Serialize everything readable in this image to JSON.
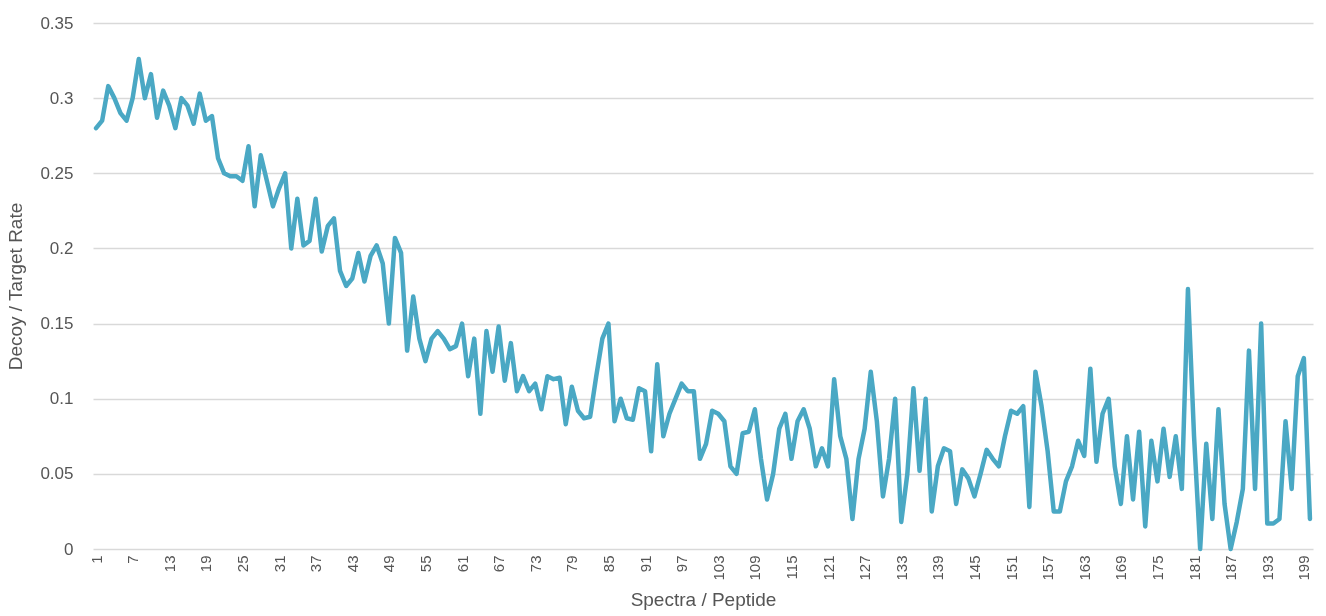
{
  "chart_data": {
    "type": "line",
    "xlabel": "Spectra / Peptide",
    "ylabel": "Decoy / Target Rate",
    "categories": [
      "1",
      null,
      null,
      null,
      null,
      null,
      "7",
      null,
      null,
      null,
      null,
      null,
      "13",
      null,
      null,
      null,
      null,
      null,
      "19",
      null,
      null,
      null,
      null,
      null,
      "25",
      null,
      null,
      null,
      null,
      null,
      "31",
      null,
      null,
      null,
      null,
      null,
      "37",
      null,
      null,
      null,
      null,
      null,
      "43",
      null,
      null,
      null,
      null,
      null,
      "49",
      null,
      null,
      null,
      null,
      null,
      "55",
      null,
      null,
      null,
      null,
      null,
      "61",
      null,
      null,
      null,
      null,
      null,
      "67",
      null,
      null,
      null,
      null,
      null,
      "73",
      null,
      null,
      null,
      null,
      null,
      "79",
      null,
      null,
      null,
      null,
      null,
      "85",
      null,
      null,
      null,
      null,
      null,
      "91",
      null,
      null,
      null,
      null,
      null,
      "97",
      null,
      null,
      null,
      null,
      null,
      "103",
      null,
      null,
      null,
      null,
      null,
      "109",
      null,
      null,
      null,
      null,
      null,
      "115",
      null,
      null,
      null,
      null,
      null,
      "121",
      null,
      null,
      null,
      null,
      null,
      "127",
      null,
      null,
      null,
      null,
      null,
      "133",
      null,
      null,
      null,
      null,
      null,
      "139",
      null,
      null,
      null,
      null,
      null,
      "145",
      null,
      null,
      null,
      null,
      null,
      "151",
      null,
      null,
      null,
      null,
      null,
      "157",
      null,
      null,
      null,
      null,
      null,
      "163",
      null,
      null,
      null,
      null,
      null,
      "169",
      null,
      null,
      null,
      null,
      null,
      "175",
      null,
      null,
      null,
      null,
      null,
      "181",
      null,
      null,
      null,
      null,
      null,
      "187",
      null,
      null,
      null,
      null,
      null,
      "193",
      null,
      null,
      null,
      null,
      null,
      "199",
      null
    ],
    "series": [
      {
        "color": "#4aa8c4",
        "values": [
          0.28,
          0.285,
          0.308,
          0.3,
          0.29,
          0.285,
          0.3,
          0.326,
          0.3,
          0.316,
          0.287,
          0.305,
          0.295,
          0.28,
          0.3,
          0.295,
          0.283,
          0.303,
          0.285,
          0.288,
          0.26,
          0.25,
          0.248,
          0.248,
          0.245,
          0.268,
          0.228,
          0.262,
          0.245,
          0.228,
          0.24,
          0.25,
          0.2,
          0.233,
          0.202,
          0.205,
          0.233,
          0.198,
          0.215,
          0.22,
          0.185,
          0.175,
          0.18,
          0.197,
          0.178,
          0.195,
          0.202,
          0.19,
          0.15,
          0.207,
          0.197,
          0.132,
          0.168,
          0.14,
          0.125,
          0.14,
          0.145,
          0.14,
          0.133,
          0.135,
          0.15,
          0.115,
          0.14,
          0.09,
          0.145,
          0.118,
          0.148,
          0.112,
          0.137,
          0.105,
          0.115,
          0.105,
          0.11,
          0.093,
          0.115,
          0.113,
          0.114,
          0.083,
          0.108,
          0.092,
          0.087,
          0.088,
          0.115,
          0.14,
          0.15,
          0.085,
          0.1,
          0.087,
          0.086,
          0.107,
          0.105,
          0.065,
          0.123,
          0.075,
          0.09,
          0.1,
          0.11,
          0.105,
          0.105,
          0.06,
          0.07,
          0.092,
          0.09,
          0.085,
          0.055,
          0.05,
          0.077,
          0.078,
          0.093,
          0.06,
          0.033,
          0.05,
          0.08,
          0.09,
          0.06,
          0.085,
          0.093,
          0.08,
          0.055,
          0.067,
          0.055,
          0.113,
          0.075,
          0.06,
          0.02,
          0.06,
          0.08,
          0.118,
          0.085,
          0.035,
          0.06,
          0.1,
          0.018,
          0.05,
          0.107,
          0.052,
          0.1,
          0.025,
          0.055,
          0.067,
          0.065,
          0.03,
          0.053,
          0.047,
          0.035,
          0.05,
          0.066,
          0.06,
          0.055,
          0.075,
          0.092,
          0.09,
          0.095,
          0.028,
          0.118,
          0.095,
          0.065,
          0.025,
          0.025,
          0.045,
          0.055,
          0.072,
          0.062,
          0.12,
          0.058,
          0.09,
          0.1,
          0.055,
          0.03,
          0.075,
          0.033,
          0.078,
          0.015,
          0.072,
          0.045,
          0.08,
          0.048,
          0.075,
          0.04,
          0.173,
          0.075,
          0,
          0.07,
          0.02,
          0.093,
          0.03,
          0,
          0.018,
          0.04,
          0.132,
          0.04,
          0.15,
          0.017,
          0.017,
          0.02,
          0.085,
          0.04,
          0.115,
          0.127,
          0.02
        ]
      }
    ],
    "ylim": [
      0,
      0.35
    ],
    "yticks": [
      0,
      0.05,
      0.1,
      0.15,
      0.2,
      0.25,
      0.3,
      0.35
    ],
    "grid": "y",
    "line_style": "solid"
  }
}
